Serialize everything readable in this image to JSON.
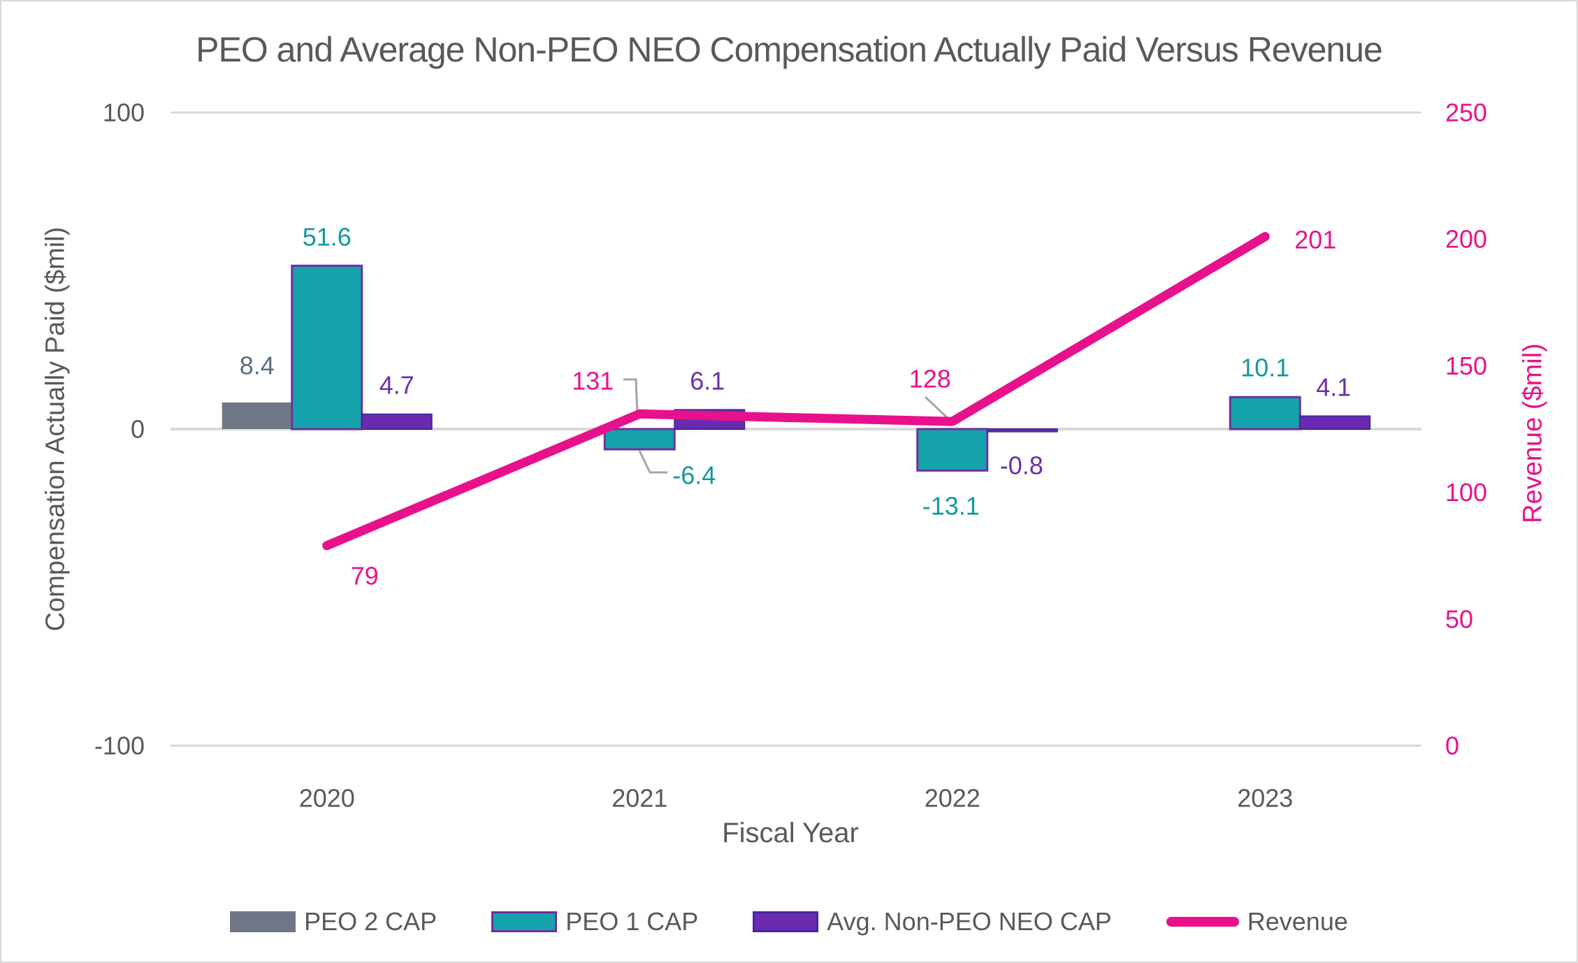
{
  "title": "PEO and Average Non-PEO NEO Compensation Actually Paid Versus Revenue",
  "axes": {
    "left": {
      "title": "Compensation Actually Paid ($mil)",
      "ticks": [
        {
          "label": "100",
          "value": 100
        },
        {
          "label": "0",
          "value": 0
        },
        {
          "label": "-100",
          "value": -100
        }
      ]
    },
    "right": {
      "title": "Revenue ($mil)",
      "ticks": [
        {
          "label": "250",
          "value": 250
        },
        {
          "label": "200",
          "value": 200
        },
        {
          "label": "150",
          "value": 150
        },
        {
          "label": "100",
          "value": 100
        },
        {
          "label": "50",
          "value": 50
        },
        {
          "label": "0",
          "value": 0
        }
      ]
    },
    "x": {
      "title": "Fiscal Year"
    }
  },
  "colors": {
    "peo2_fill": "#6F7787",
    "peo1_fill": "#14A3AB",
    "peo1_border": "#7030A0",
    "neo_fill": "#6B2BAE",
    "neo_border": "#4527A3",
    "revenue": "#E8118C",
    "text_gray": "#595959",
    "gridline": "#D9D9D9",
    "leader_gray": "#A6A6A6"
  },
  "legend": [
    {
      "label": "PEO 2 CAP",
      "type": "bar",
      "color": "#6F7787",
      "border": "none"
    },
    {
      "label": "PEO 1 CAP",
      "type": "bar",
      "color": "#14A3AB",
      "border": "#7030A0"
    },
    {
      "label": "Avg. Non-PEO NEO CAP",
      "type": "bar",
      "color": "#6B2BAE",
      "border": "#4527A3"
    },
    {
      "label": "Revenue",
      "type": "line",
      "color": "#E8118C",
      "border": "none"
    }
  ],
  "chart_data": {
    "type": "combo",
    "categories": [
      "2020",
      "2021",
      "2022",
      "2023"
    ],
    "xlabel": "Fiscal Year",
    "ylabel_left": "Compensation Actually Paid ($mil)",
    "ylabel_right": "Revenue ($mil)",
    "left_ylim": [
      -100,
      100
    ],
    "right_ylim": [
      0,
      250
    ],
    "grid": "horizontal",
    "legend_position": "bottom",
    "series": [
      {
        "name": "PEO 2 CAP",
        "type": "bar",
        "axis": "left",
        "color": "#6F7787",
        "border": "none",
        "label_color": "#5D6D80",
        "values": [
          8.4,
          null,
          null,
          null
        ],
        "labels": [
          "8.4",
          "",
          "",
          ""
        ]
      },
      {
        "name": "PEO 1 CAP",
        "type": "bar",
        "axis": "left",
        "color": "#14A3AB",
        "border": "#7030A0",
        "label_color": "#13989F",
        "values": [
          51.6,
          -6.4,
          -13.1,
          10.1
        ],
        "labels": [
          "51.6",
          "-6.4",
          "-13.1",
          "10.1"
        ]
      },
      {
        "name": "Avg. Non-PEO NEO CAP",
        "type": "bar",
        "axis": "left",
        "color": "#6B2BAE",
        "border": "#4527A3",
        "label_color": "#6B2FA8",
        "values": [
          4.7,
          6.1,
          -0.8,
          4.1
        ],
        "labels": [
          "4.7",
          "6.1",
          "-0.8",
          "4.1"
        ]
      },
      {
        "name": "Revenue",
        "type": "line",
        "axis": "right",
        "color": "#E8118C",
        "label_color": "#E8118C",
        "values": [
          79,
          131,
          128,
          201
        ],
        "labels": [
          "79",
          "131",
          "128",
          "201"
        ]
      }
    ]
  }
}
